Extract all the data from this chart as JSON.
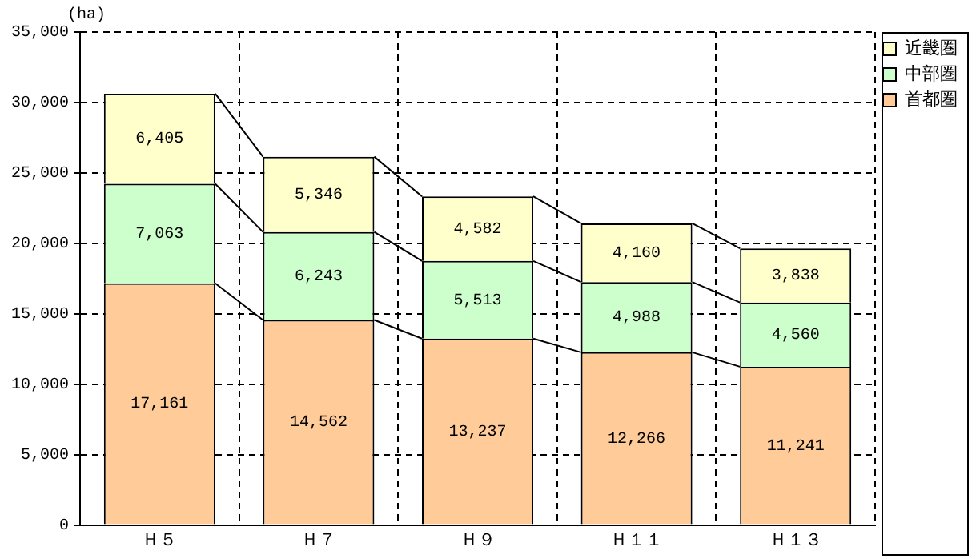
{
  "chart_data": {
    "type": "bar",
    "stacked": true,
    "ylabel": "(ha)",
    "categories": [
      "Ｈ５",
      "Ｈ７",
      "Ｈ９",
      "Ｈ１１",
      "Ｈ１３"
    ],
    "series": [
      {
        "name": "首都圏",
        "color": "#ffcc99",
        "values": [
          17161,
          14562,
          13237,
          12266,
          11241
        ],
        "value_labels": [
          "17,161",
          "14,562",
          "13,237",
          "12,266",
          "11,241"
        ]
      },
      {
        "name": "中部圏",
        "color": "#ccffcc",
        "values": [
          7063,
          6243,
          5513,
          4988,
          4560
        ],
        "value_labels": [
          "7,063",
          "6,243",
          "5,513",
          "4,988",
          "4,560"
        ]
      },
      {
        "name": "近畿圏",
        "color": "#ffffcc",
        "values": [
          6405,
          5346,
          4582,
          4160,
          3838
        ],
        "value_labels": [
          "6,405",
          "5,346",
          "4,582",
          "4,160",
          "3,838"
        ]
      }
    ],
    "ylim": [
      0,
      35000
    ],
    "yticks": [
      {
        "value": 0,
        "label": "0"
      },
      {
        "value": 5000,
        "label": "5,000"
      },
      {
        "value": 10000,
        "label": "10,000"
      },
      {
        "value": 15000,
        "label": "15,000"
      },
      {
        "value": 20000,
        "label": "20,000"
      },
      {
        "value": 25000,
        "label": "25,000"
      },
      {
        "value": 30000,
        "label": "30,000"
      },
      {
        "value": 35000,
        "label": "35,000"
      }
    ],
    "grid": true,
    "legend": "top right"
  }
}
